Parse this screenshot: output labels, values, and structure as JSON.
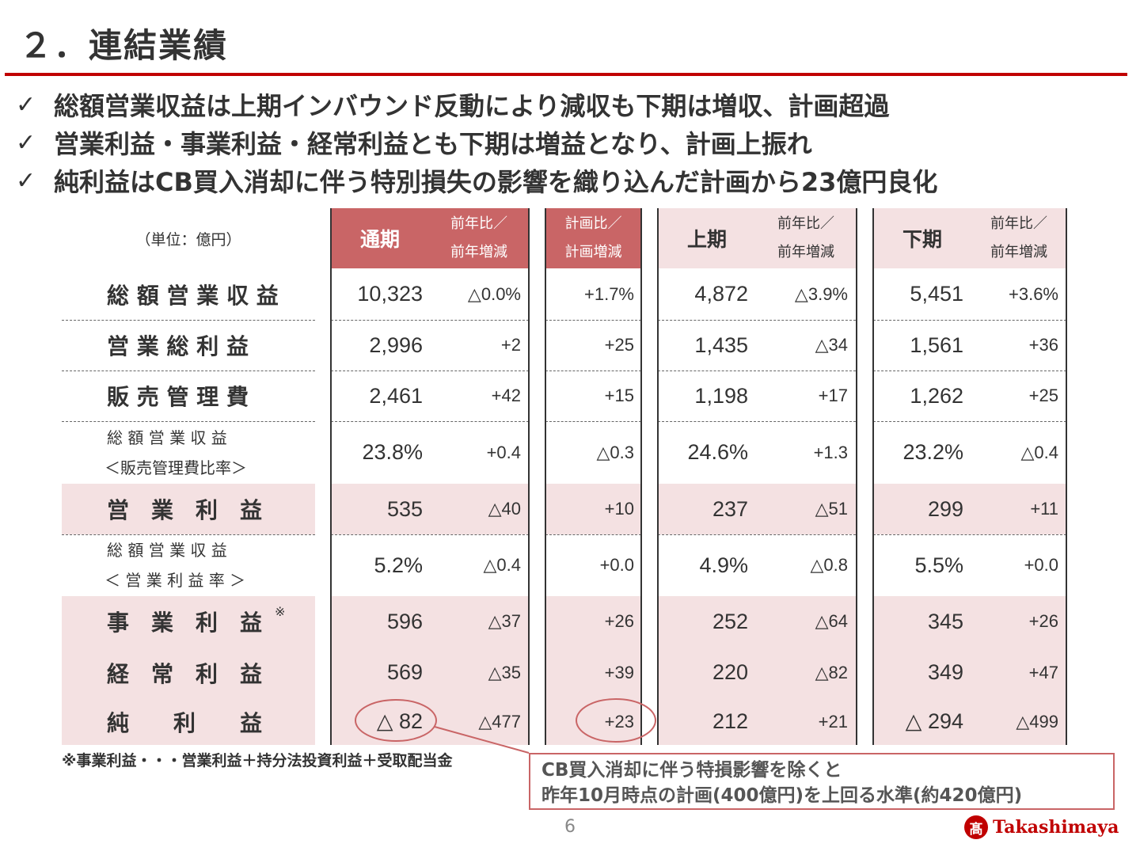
{
  "title": "２．連結業績",
  "bullets": [
    "総額営業収益は上期インバウンド反動により減収も下期は増収、計画超過",
    "営業利益・事業利益・経常利益とも下期は増益となり、計画上振れ",
    "純利益はCB買入消却に伴う特別損失の影響を織り込んだ計画から23億円良化"
  ],
  "check_mark": "✓",
  "table": {
    "unit": "（単位：億円）",
    "headers": {
      "full_year": "通期",
      "full_yoy": "前年比／\n前年増減",
      "plan": "計画比／\n計画増減",
      "h1": "上期",
      "h1_yoy": "前年比／\n前年増減",
      "h2": "下期",
      "h2_yoy": "前年比／\n前年増減"
    },
    "rows": [
      {
        "label": "総 額 営 業 収 益",
        "label2": "",
        "full": "10,323",
        "full_chg": "△0.0%",
        "plan": "+1.7%",
        "h1": "4,872",
        "h1_chg": "△3.9%",
        "h2": "5,451",
        "h2_chg": "+3.6%",
        "highlight": false
      },
      {
        "label": "営 業 総 利 益",
        "label2": "",
        "full": "2,996",
        "full_chg": "+2",
        "plan": "+25",
        "h1": "1,435",
        "h1_chg": "△34",
        "h2": "1,561",
        "h2_chg": "+36",
        "highlight": false
      },
      {
        "label": "販 売 管 理 費",
        "label2": "",
        "full": "2,461",
        "full_chg": "+42",
        "plan": "+15",
        "h1": "1,198",
        "h1_chg": "+17",
        "h2": "1,262",
        "h2_chg": "+25",
        "highlight": false
      },
      {
        "label": "総 額 営 業 収 益",
        "label2": "＜販売管理費比率＞",
        "full": "23.8%",
        "full_chg": "+0.4",
        "plan": "△0.3",
        "h1": "24.6%",
        "h1_chg": "+1.3",
        "h2": "23.2%",
        "h2_chg": "△0.4",
        "highlight": false
      },
      {
        "label": "営　業　利　益",
        "label2": "",
        "full": "535",
        "full_chg": "△40",
        "plan": "+10",
        "h1": "237",
        "h1_chg": "△51",
        "h2": "299",
        "h2_chg": "+11",
        "highlight": true
      },
      {
        "label": "総 額 営 業 収 益",
        "label2": "＜ 営 業 利 益 率 ＞",
        "full": "5.2%",
        "full_chg": "△0.4",
        "plan": "+0.0",
        "h1": "4.9%",
        "h1_chg": "△0.8",
        "h2": "5.5%",
        "h2_chg": "+0.0",
        "highlight": false
      },
      {
        "label": "事　業　利　益",
        "label2": "",
        "note_mark": "※",
        "full": "596",
        "full_chg": "△37",
        "plan": "+26",
        "h1": "252",
        "h1_chg": "△64",
        "h2": "345",
        "h2_chg": "+26",
        "highlight": true
      },
      {
        "label": "経　常　利　益",
        "label2": "",
        "full": "569",
        "full_chg": "△35",
        "plan": "+39",
        "h1": "220",
        "h1_chg": "△82",
        "h2": "349",
        "h2_chg": "+47",
        "highlight": true
      },
      {
        "label": "純　　利　　益",
        "label2": "",
        "full": "△ 82",
        "full_chg": "△477",
        "plan": "+23",
        "h1": "212",
        "h1_chg": "+21",
        "h2": "△ 294",
        "h2_chg": "△499",
        "highlight": true
      }
    ]
  },
  "footnote": "※事業利益・・・営業利益＋持分法投資利益＋受取配当金",
  "callout": {
    "line1": "CB買入消却に伴う特損影響を除くと",
    "line2": "昨年10月時点の計画(400億円)を上回る水準(約420億円)"
  },
  "page_number": "6",
  "logo": {
    "mark": "髙",
    "text": "Takashimaya"
  },
  "colors": {
    "accent": "#c00000",
    "header_pink": "#c96566",
    "row_pink": "#f4e1e2"
  }
}
